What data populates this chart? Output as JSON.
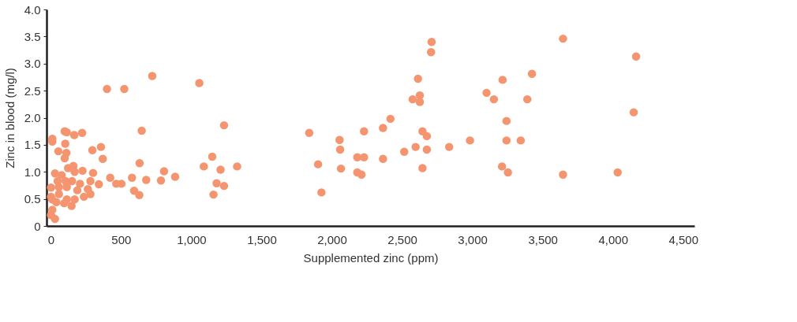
{
  "chart_data": {
    "type": "scatter",
    "xlabel": "Supplemented zinc (ppm)",
    "ylabel": "Zinc in blood (mg/l)",
    "xlim": [
      -30,
      4580
    ],
    "ylim": [
      0,
      4.0
    ],
    "xticks": [
      0,
      500,
      {
        "value": 1000,
        "label": "1,000"
      },
      {
        "value": 1500,
        "label": "1,500"
      },
      {
        "value": 2000,
        "label": "2,000"
      },
      {
        "value": 2500,
        "label": "2,500"
      },
      {
        "value": 3000,
        "label": "3,000"
      },
      {
        "value": 3500,
        "label": "3,500"
      },
      {
        "value": 4000,
        "label": "4,000"
      },
      {
        "value": 4500,
        "label": "4,500"
      }
    ],
    "yticks": [
      0,
      0.5,
      {
        "value": 1,
        "label": "1.0"
      },
      1.5,
      {
        "value": 2,
        "label": "2.0"
      },
      2.5,
      {
        "value": 3,
        "label": "3.0"
      },
      3.5,
      {
        "value": 4,
        "label": "4.0"
      }
    ],
    "grid": false,
    "legend": false,
    "marker": "circle",
    "series": [
      {
        "color": "#f4956f",
        "x": [
          722,
          400,
          523,
          1057,
          1233,
          647,
          99,
          114,
          167,
          223,
          11,
          11,
          103,
          54,
          111,
          99,
          296,
          357,
          370,
          632,
          1149,
          1089,
          1208,
          1326,
          806,
          885,
          784,
          679,
          578,
          423,
          466,
          503,
          342,
          593,
          630,
          1180,
          1233,
          1158,
          30,
          77,
          123,
          161,
          226,
          301,
          170,
          49,
          105,
          151,
          2,
          58,
          114,
          208,
          282,
          189,
          264,
          2,
          58,
          114,
          170,
          236,
          282,
          10,
          39,
          148,
          11,
          2,
          30,
          95,
          2706,
          2710,
          2613,
          2575,
          2626,
          2626,
          3101,
          2417,
          2364,
          2229,
          1839,
          2055,
          2059,
          2181,
          2229,
          2364,
          1902,
          2065,
          2181,
          2211,
          1926,
          2645,
          2676,
          2983,
          2596,
          2676,
          2835,
          2515,
          2645,
          3645,
          4165,
          3424,
          3215,
          3153,
          3391,
          4148,
          3243,
          3243,
          3344,
          3211,
          3253,
          3645,
          4034
        ],
        "values": [
          2.77,
          2.53,
          2.53,
          2.64,
          1.86,
          1.76,
          1.75,
          1.73,
          1.68,
          1.72,
          1.61,
          1.56,
          1.52,
          1.38,
          1.35,
          1.25,
          1.4,
          1.46,
          1.24,
          1.16,
          1.28,
          1.1,
          1.04,
          1.1,
          1.01,
          0.91,
          0.84,
          0.85,
          0.89,
          0.89,
          0.78,
          0.78,
          0.77,
          0.65,
          0.57,
          0.79,
          0.74,
          0.58,
          0.97,
          0.94,
          1.07,
          1.11,
          1.02,
          0.98,
          1.0,
          0.83,
          0.83,
          0.83,
          0.71,
          0.72,
          0.72,
          0.78,
          0.83,
          0.66,
          0.68,
          0.54,
          0.59,
          0.49,
          0.49,
          0.54,
          0.59,
          0.49,
          0.44,
          0.37,
          0.3,
          0.2,
          0.13,
          0.42,
          3.21,
          3.4,
          2.72,
          2.34,
          2.41,
          2.29,
          2.46,
          1.98,
          1.81,
          1.75,
          1.72,
          1.59,
          1.41,
          1.27,
          1.27,
          1.24,
          1.14,
          1.06,
          0.99,
          0.95,
          0.62,
          1.75,
          1.66,
          1.58,
          1.46,
          1.41,
          1.46,
          1.37,
          1.07,
          3.46,
          3.13,
          2.81,
          2.7,
          2.34,
          2.34,
          2.1,
          1.94,
          1.58,
          1.58,
          1.1,
          0.99,
          0.95,
          0.99
        ]
      }
    ]
  }
}
